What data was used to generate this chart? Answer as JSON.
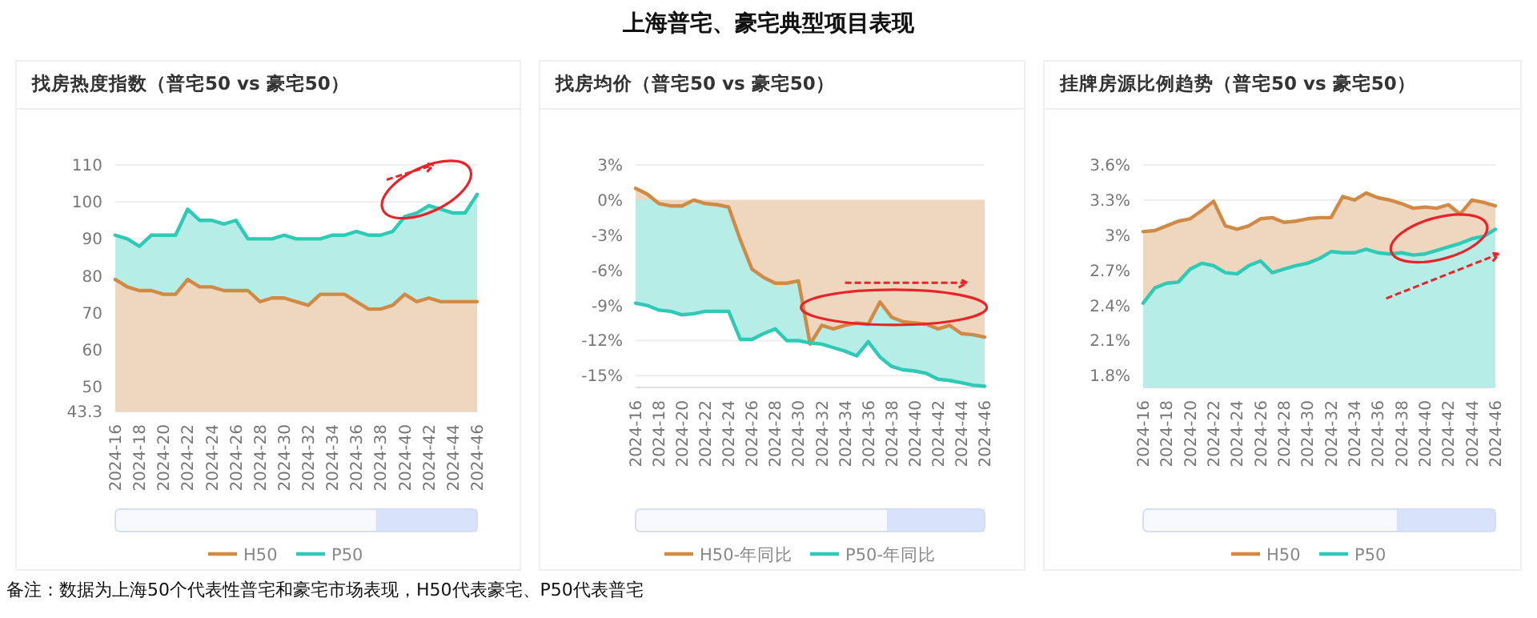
{
  "chart_data": [
    {
      "type": "area",
      "title": "找房热度指数（普宅50 vs 豪宅50）",
      "categories": [
        "2024-16",
        null,
        "2024-18",
        null,
        "2024-20",
        null,
        "2024-22",
        null,
        "2024-24",
        null,
        "2024-26",
        null,
        "2024-28",
        null,
        "2024-30",
        null,
        "2024-32",
        null,
        "2024-34",
        null,
        "2024-36",
        null,
        "2024-38",
        null,
        "2024-40",
        null,
        "2024-42",
        null,
        "2024-44",
        null,
        "2024-46"
      ],
      "ylim": [
        43.3,
        110
      ],
      "yticks": [
        43.3,
        50,
        60,
        70,
        80,
        90,
        100,
        110
      ],
      "grid": "y",
      "legend": "bottom",
      "marker": "none",
      "line_style": "solid",
      "series": [
        {
          "name": "H50",
          "color": "#d08a45",
          "values": [
            79,
            77,
            76,
            76,
            75,
            75,
            79,
            77,
            77,
            76,
            76,
            76,
            73,
            74,
            74,
            73,
            72,
            75,
            75,
            75,
            73,
            71,
            71,
            72,
            75,
            73,
            74,
            73,
            73,
            73,
            73
          ]
        },
        {
          "name": "P50",
          "color": "#2ecab6",
          "values": [
            91,
            90,
            88,
            91,
            91,
            91,
            98,
            95,
            95,
            94,
            95,
            90,
            90,
            90,
            91,
            90,
            90,
            90,
            91,
            91,
            92,
            91,
            91,
            92,
            96,
            97,
            99,
            98,
            97,
            97,
            102
          ]
        }
      ]
    },
    {
      "type": "area",
      "title": "找房均价（普宅50 vs 豪宅50）",
      "categories": [
        "2024-16",
        null,
        "2024-18",
        null,
        "2024-20",
        null,
        "2024-22",
        null,
        "2024-24",
        null,
        "2024-26",
        null,
        "2024-28",
        null,
        "2024-30",
        null,
        "2024-32",
        null,
        "2024-34",
        null,
        "2024-36",
        null,
        "2024-38",
        null,
        "2024-40",
        null,
        "2024-42",
        null,
        "2024-44",
        null,
        "2024-46"
      ],
      "ylim": [
        -16,
        3
      ],
      "yticks": [
        {
          "value": 3,
          "label": "3%"
        },
        {
          "value": 0,
          "label": "0%"
        },
        {
          "value": -3,
          "label": "-3%"
        },
        {
          "value": -6,
          "label": "-6%"
        },
        {
          "value": -9,
          "label": "-9%"
        },
        {
          "value": -12,
          "label": "-12%"
        },
        {
          "value": -15,
          "label": "-15%"
        }
      ],
      "grid": "y",
      "legend": "bottom",
      "marker": "none",
      "line_style": "solid",
      "series": [
        {
          "name": "H50-年同比",
          "color": "#d08a45",
          "values": [
            1.0,
            0.5,
            -0.3,
            -0.5,
            -0.5,
            0,
            -0.3,
            -0.4,
            -0.6,
            -3.4,
            -5.9,
            -6.6,
            -7.1,
            -7.1,
            -6.9,
            -12.3,
            -10.7,
            -11.0,
            -10.7,
            -10.5,
            -10.6,
            -8.7,
            -10.0,
            -10.4,
            -10.5,
            -10.6,
            -11.0,
            -10.7,
            -11.4,
            -11.5,
            -11.7
          ]
        },
        {
          "name": "P50-年同比",
          "color": "#2ecab6",
          "values": [
            -8.8,
            -9.0,
            -9.4,
            -9.5,
            -9.8,
            -9.7,
            -9.5,
            -9.5,
            -9.5,
            -11.9,
            -11.9,
            -11.4,
            -11.0,
            -12.0,
            -12.0,
            -12.2,
            -12.3,
            -12.6,
            -12.9,
            -13.3,
            -12.1,
            -13.4,
            -14.2,
            -14.5,
            -14.6,
            -14.8,
            -15.3,
            -15.4,
            -15.6,
            -15.8,
            -15.9
          ]
        }
      ]
    },
    {
      "type": "area",
      "title": "挂牌房源比例趋势（普宅50 vs 豪宅50）",
      "categories": [
        "2024-16",
        null,
        "2024-18",
        null,
        "2024-20",
        null,
        "2024-22",
        null,
        "2024-24",
        null,
        "2024-26",
        null,
        "2024-28",
        null,
        "2024-30",
        null,
        "2024-32",
        null,
        "2024-34",
        null,
        "2024-36",
        null,
        "2024-38",
        null,
        "2024-40",
        null,
        "2024-42",
        null,
        "2024-44",
        null,
        "2024-46"
      ],
      "ylim": [
        1.7,
        3.6
      ],
      "yticks": [
        {
          "value": 1.8,
          "label": "1.8%"
        },
        {
          "value": 2.1,
          "label": "2.1%"
        },
        {
          "value": 2.4,
          "label": "2.4%"
        },
        {
          "value": 2.7,
          "label": "2.7%"
        },
        {
          "value": 3,
          "label": "3%"
        },
        {
          "value": 3.3,
          "label": "3.3%"
        },
        {
          "value": 3.6,
          "label": "3.6%"
        }
      ],
      "grid": "y",
      "legend": "bottom",
      "marker": "none",
      "line_style": "solid",
      "series": [
        {
          "name": "H50",
          "color": "#d08a45",
          "values": [
            3.03,
            3.04,
            3.08,
            3.12,
            3.14,
            3.21,
            3.29,
            3.08,
            3.05,
            3.08,
            3.14,
            3.15,
            3.11,
            3.12,
            3.14,
            3.15,
            3.15,
            3.33,
            3.3,
            3.36,
            3.32,
            3.3,
            3.27,
            3.23,
            3.24,
            3.23,
            3.26,
            3.18,
            3.3,
            3.28,
            3.25
          ]
        },
        {
          "name": "P50",
          "color": "#2ecab6",
          "values": [
            2.42,
            2.55,
            2.59,
            2.6,
            2.71,
            2.76,
            2.74,
            2.68,
            2.67,
            2.74,
            2.78,
            2.68,
            2.71,
            2.74,
            2.76,
            2.8,
            2.86,
            2.85,
            2.85,
            2.88,
            2.85,
            2.84,
            2.85,
            2.83,
            2.84,
            2.87,
            2.9,
            2.93,
            2.97,
            2.99,
            3.05
          ]
        }
      ]
    },
    {
      "type": "other",
      "title": "上海普宅、豪宅典型项目表现",
      "annotations": [
        "备注：数据为上海50个代表性普宅和豪宅市场表现，H50代表豪宅、P50代表普宅"
      ]
    }
  ]
}
